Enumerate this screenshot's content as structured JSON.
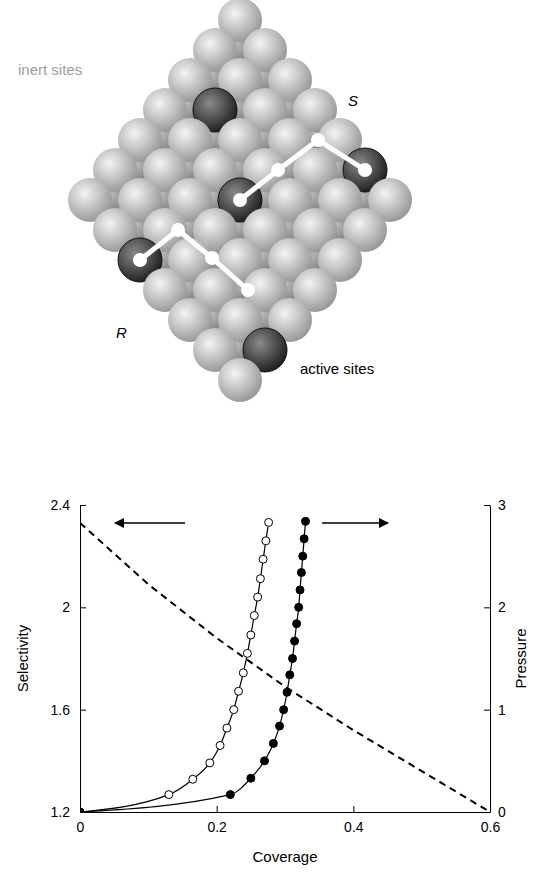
{
  "diagram": {
    "texts": [
      "inert sites",
      "S",
      "R",
      "active sites"
    ]
  },
  "chart_data": {
    "type": "line",
    "x_label": "Coverage",
    "y_label": "Selectivity",
    "y2_label": "Pressure",
    "xlim": [
      0,
      0.6
    ],
    "xticks": [
      0,
      0.2,
      0.4,
      0.6
    ],
    "ylim": [
      1.2,
      2.4
    ],
    "yticks": [
      1.2,
      1.6,
      2,
      2.4
    ],
    "y2lim": [
      0,
      3
    ],
    "y2ticks": [
      0,
      1,
      2,
      3
    ],
    "grid": false,
    "series": [
      {
        "type": "line",
        "color": "#000000",
        "line_style": "dashed",
        "marker": "none",
        "x": [
          0,
          0.1,
          0.2,
          0.3,
          0.4,
          0.5,
          0.6
        ],
        "values": [
          2.33,
          2.09,
          1.88,
          1.69,
          1.52,
          1.36,
          1.2
        ]
      },
      {
        "type": "line",
        "axis": "y2",
        "color": "#000000",
        "line_style": "solid",
        "marker": "open-circle",
        "x": [
          0,
          0.13,
          0.165,
          0.19,
          0.205,
          0.215,
          0.225,
          0.232,
          0.239,
          0.245,
          0.25,
          0.255,
          0.26,
          0.264,
          0.268,
          0.272,
          0.276
        ],
        "values": [
          0,
          0.17,
          0.32,
          0.48,
          0.65,
          0.82,
          1.0,
          1.18,
          1.36,
          1.55,
          1.73,
          1.92,
          2.1,
          2.28,
          2.47,
          2.65,
          2.83
        ]
      },
      {
        "type": "line",
        "axis": "y2",
        "color": "#000000",
        "line_style": "solid",
        "marker": "filled-circle",
        "x": [
          0,
          0.22,
          0.25,
          0.27,
          0.283,
          0.292,
          0.298,
          0.303,
          0.307,
          0.311,
          0.314,
          0.317,
          0.32,
          0.322,
          0.324,
          0.326,
          0.328,
          0.33
        ],
        "values": [
          0,
          0.17,
          0.33,
          0.5,
          0.67,
          0.84,
          1.0,
          1.17,
          1.34,
          1.5,
          1.67,
          1.84,
          2.0,
          2.17,
          2.34,
          2.5,
          2.67,
          2.84
        ]
      }
    ]
  }
}
